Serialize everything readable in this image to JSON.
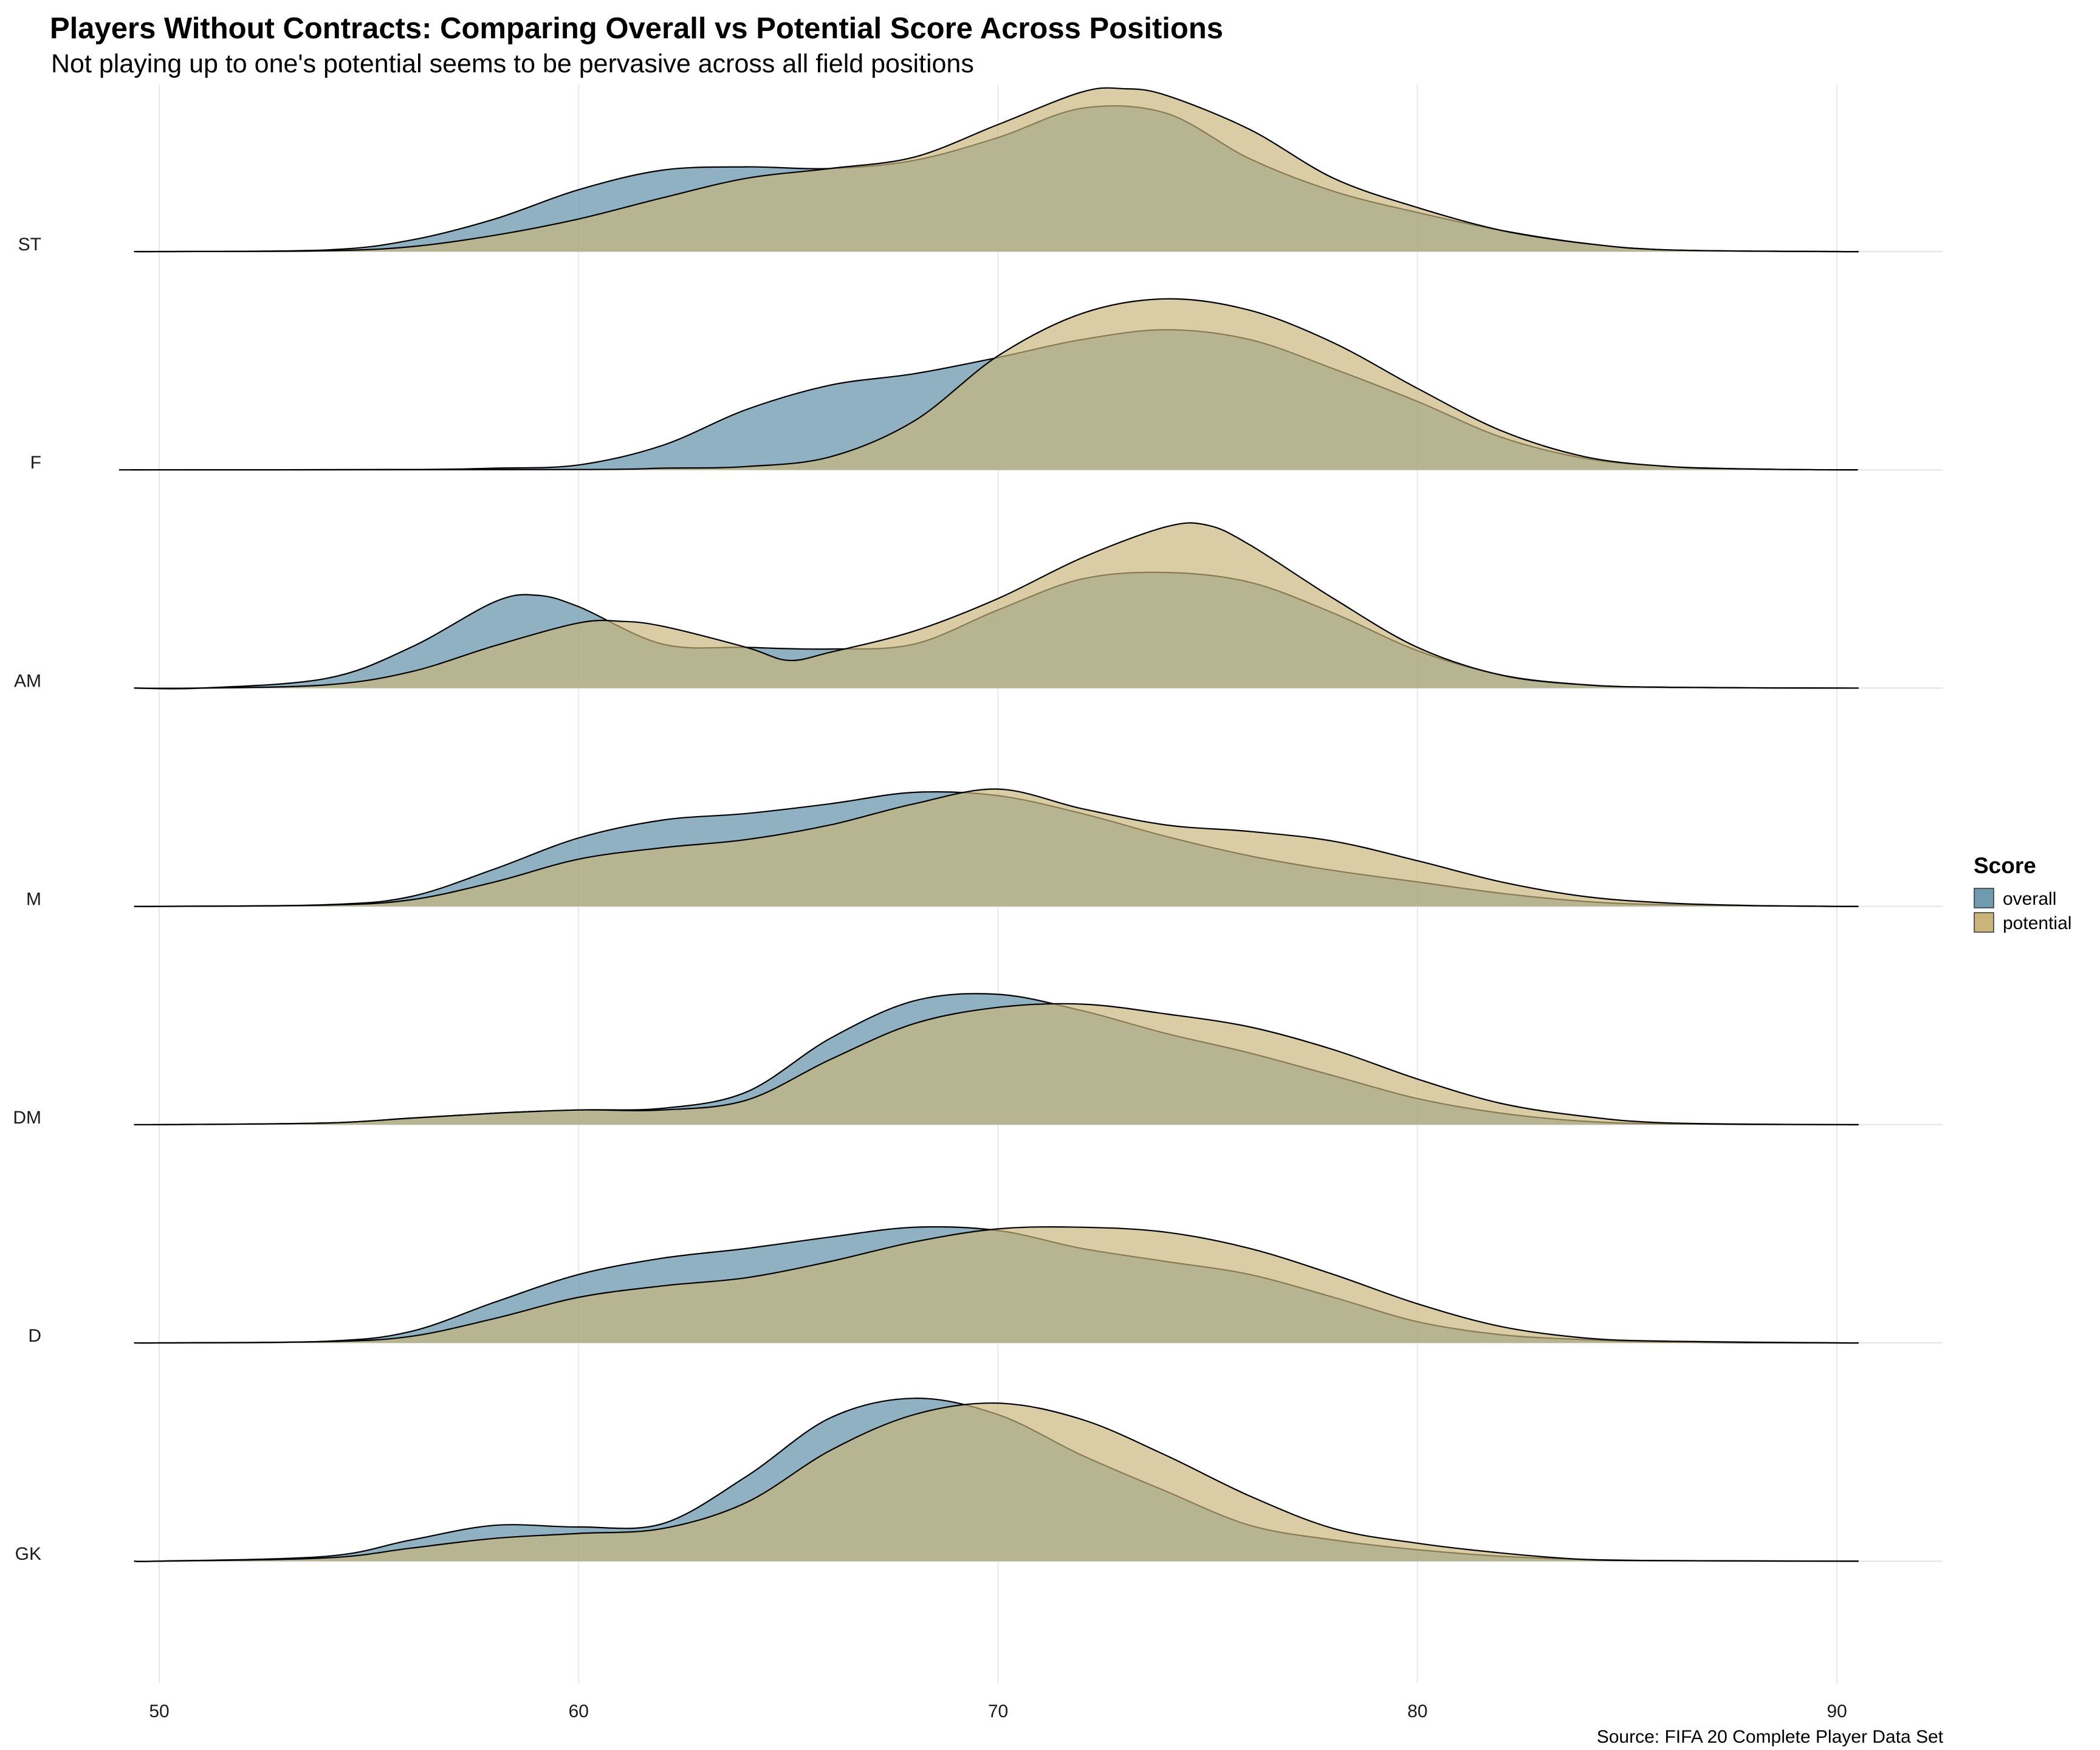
{
  "chart_data": {
    "type": "ridgeline-density",
    "title": "Players Without Contracts: Comparing Overall vs Potential Score Across Positions",
    "subtitle": "Not playing up to one's potential seems to be pervasive across all field positions",
    "caption": "Source: FIFA 20 Complete Player Data Set",
    "x_ticks": [
      50,
      60,
      70,
      80,
      90
    ],
    "xlim": [
      49.4,
      92.5
    ],
    "curve_xrange": [
      49.4,
      90.5
    ],
    "categories": [
      "ST",
      "F",
      "AM",
      "M",
      "DM",
      "D",
      "GK"
    ],
    "legend": {
      "title": "Score",
      "placement": "right",
      "items": [
        {
          "label": "overall",
          "color": "#6f9bb0"
        },
        {
          "label": "potential",
          "color": "#c9b57a"
        }
      ]
    },
    "colors": {
      "overall": "#6f9bb0",
      "potential": "#c9b57a",
      "overlap": "#a2a783"
    },
    "series_by_category": {
      "ST": {
        "overall": [
          [
            50,
            0
          ],
          [
            54,
            0.01
          ],
          [
            56,
            0.07
          ],
          [
            58,
            0.2
          ],
          [
            60,
            0.38
          ],
          [
            62,
            0.5
          ],
          [
            64,
            0.52
          ],
          [
            66,
            0.51
          ],
          [
            68,
            0.56
          ],
          [
            70,
            0.7
          ],
          [
            72,
            0.88
          ],
          [
            74,
            0.85
          ],
          [
            76,
            0.57
          ],
          [
            78,
            0.37
          ],
          [
            80,
            0.24
          ],
          [
            82,
            0.13
          ],
          [
            84,
            0.05
          ],
          [
            86,
            0.01
          ],
          [
            90,
            0
          ]
        ],
        "potential": [
          [
            50,
            0
          ],
          [
            54,
            0.005
          ],
          [
            56,
            0.03
          ],
          [
            58,
            0.1
          ],
          [
            60,
            0.2
          ],
          [
            62,
            0.33
          ],
          [
            64,
            0.45
          ],
          [
            66,
            0.51
          ],
          [
            68,
            0.58
          ],
          [
            70,
            0.78
          ],
          [
            72,
            0.98
          ],
          [
            73,
            1.0
          ],
          [
            74,
            0.96
          ],
          [
            76,
            0.75
          ],
          [
            78,
            0.45
          ],
          [
            80,
            0.27
          ],
          [
            82,
            0.13
          ],
          [
            84,
            0.05
          ],
          [
            86,
            0.01
          ],
          [
            90,
            0
          ]
        ]
      },
      "F": {
        "overall": [
          [
            50,
            0
          ],
          [
            56,
            0.002
          ],
          [
            58,
            0.01
          ],
          [
            60,
            0.03
          ],
          [
            62,
            0.15
          ],
          [
            64,
            0.37
          ],
          [
            66,
            0.52
          ],
          [
            68,
            0.59
          ],
          [
            70,
            0.69
          ],
          [
            72,
            0.8
          ],
          [
            74,
            0.86
          ],
          [
            76,
            0.8
          ],
          [
            78,
            0.62
          ],
          [
            80,
            0.42
          ],
          [
            82,
            0.2
          ],
          [
            84,
            0.07
          ],
          [
            86,
            0.02
          ],
          [
            88,
            0.005
          ],
          [
            90,
            0
          ]
        ],
        "potential": [
          [
            50,
            0
          ],
          [
            60,
            0.002
          ],
          [
            62,
            0.01
          ],
          [
            64,
            0.02
          ],
          [
            66,
            0.08
          ],
          [
            68,
            0.3
          ],
          [
            70,
            0.7
          ],
          [
            72,
            0.96
          ],
          [
            74,
            1.05
          ],
          [
            76,
            0.98
          ],
          [
            78,
            0.78
          ],
          [
            80,
            0.5
          ],
          [
            82,
            0.24
          ],
          [
            84,
            0.08
          ],
          [
            86,
            0.02
          ],
          [
            88,
            0.005
          ],
          [
            90,
            0
          ]
        ]
      },
      "AM": {
        "overall": [
          [
            51,
            0
          ],
          [
            54,
            0.06
          ],
          [
            56,
            0.25
          ],
          [
            58,
            0.53
          ],
          [
            59,
            0.57
          ],
          [
            60,
            0.5
          ],
          [
            62,
            0.27
          ],
          [
            64,
            0.25
          ],
          [
            66,
            0.24
          ],
          [
            68,
            0.27
          ],
          [
            70,
            0.48
          ],
          [
            72,
            0.67
          ],
          [
            74,
            0.71
          ],
          [
            76,
            0.65
          ],
          [
            78,
            0.46
          ],
          [
            80,
            0.23
          ],
          [
            82,
            0.08
          ],
          [
            84,
            0.02
          ],
          [
            86,
            0.005
          ],
          [
            90,
            0
          ]
        ],
        "potential": [
          [
            51,
            0
          ],
          [
            54,
            0.02
          ],
          [
            56,
            0.1
          ],
          [
            58,
            0.26
          ],
          [
            60,
            0.4
          ],
          [
            61,
            0.41
          ],
          [
            62,
            0.38
          ],
          [
            64,
            0.25
          ],
          [
            65,
            0.17
          ],
          [
            66,
            0.22
          ],
          [
            68,
            0.35
          ],
          [
            70,
            0.55
          ],
          [
            72,
            0.8
          ],
          [
            74,
            0.99
          ],
          [
            75,
            1.0
          ],
          [
            76,
            0.88
          ],
          [
            78,
            0.55
          ],
          [
            80,
            0.25
          ],
          [
            82,
            0.08
          ],
          [
            84,
            0.02
          ],
          [
            86,
            0.005
          ],
          [
            90,
            0
          ]
        ]
      },
      "M": {
        "overall": [
          [
            50,
            0
          ],
          [
            54,
            0.01
          ],
          [
            56,
            0.06
          ],
          [
            58,
            0.23
          ],
          [
            60,
            0.42
          ],
          [
            62,
            0.53
          ],
          [
            64,
            0.57
          ],
          [
            66,
            0.63
          ],
          [
            68,
            0.7
          ],
          [
            70,
            0.68
          ],
          [
            72,
            0.57
          ],
          [
            74,
            0.43
          ],
          [
            76,
            0.31
          ],
          [
            78,
            0.22
          ],
          [
            80,
            0.15
          ],
          [
            82,
            0.08
          ],
          [
            84,
            0.03
          ],
          [
            86,
            0.01
          ],
          [
            90,
            0
          ]
        ],
        "potential": [
          [
            50,
            0
          ],
          [
            54,
            0.008
          ],
          [
            56,
            0.04
          ],
          [
            58,
            0.15
          ],
          [
            60,
            0.29
          ],
          [
            62,
            0.36
          ],
          [
            64,
            0.41
          ],
          [
            66,
            0.5
          ],
          [
            68,
            0.63
          ],
          [
            70,
            0.72
          ],
          [
            72,
            0.6
          ],
          [
            74,
            0.5
          ],
          [
            76,
            0.46
          ],
          [
            78,
            0.4
          ],
          [
            80,
            0.28
          ],
          [
            82,
            0.15
          ],
          [
            84,
            0.06
          ],
          [
            86,
            0.02
          ],
          [
            88,
            0.005
          ],
          [
            90,
            0
          ]
        ]
      },
      "DM": {
        "overall": [
          [
            50,
            0
          ],
          [
            54,
            0.01
          ],
          [
            56,
            0.04
          ],
          [
            58,
            0.07
          ],
          [
            60,
            0.09
          ],
          [
            62,
            0.1
          ],
          [
            64,
            0.2
          ],
          [
            66,
            0.53
          ],
          [
            68,
            0.76
          ],
          [
            70,
            0.8
          ],
          [
            72,
            0.7
          ],
          [
            74,
            0.56
          ],
          [
            76,
            0.44
          ],
          [
            78,
            0.3
          ],
          [
            80,
            0.16
          ],
          [
            82,
            0.07
          ],
          [
            84,
            0.02
          ],
          [
            86,
            0.005
          ],
          [
            90,
            0
          ]
        ],
        "potential": [
          [
            50,
            0
          ],
          [
            54,
            0.01
          ],
          [
            56,
            0.04
          ],
          [
            58,
            0.07
          ],
          [
            60,
            0.09
          ],
          [
            62,
            0.09
          ],
          [
            64,
            0.15
          ],
          [
            66,
            0.4
          ],
          [
            68,
            0.62
          ],
          [
            70,
            0.72
          ],
          [
            72,
            0.74
          ],
          [
            74,
            0.68
          ],
          [
            76,
            0.6
          ],
          [
            78,
            0.46
          ],
          [
            80,
            0.28
          ],
          [
            82,
            0.13
          ],
          [
            84,
            0.05
          ],
          [
            86,
            0.01
          ],
          [
            90,
            0
          ]
        ]
      },
      "D": {
        "overall": [
          [
            50,
            0
          ],
          [
            54,
            0.01
          ],
          [
            56,
            0.07
          ],
          [
            58,
            0.25
          ],
          [
            60,
            0.42
          ],
          [
            62,
            0.52
          ],
          [
            64,
            0.58
          ],
          [
            66,
            0.65
          ],
          [
            68,
            0.71
          ],
          [
            70,
            0.69
          ],
          [
            72,
            0.58
          ],
          [
            74,
            0.5
          ],
          [
            76,
            0.42
          ],
          [
            78,
            0.28
          ],
          [
            80,
            0.13
          ],
          [
            82,
            0.05
          ],
          [
            84,
            0.02
          ],
          [
            86,
            0.005
          ],
          [
            90,
            0
          ]
        ],
        "potential": [
          [
            50,
            0
          ],
          [
            54,
            0.008
          ],
          [
            56,
            0.04
          ],
          [
            58,
            0.15
          ],
          [
            60,
            0.28
          ],
          [
            62,
            0.35
          ],
          [
            64,
            0.4
          ],
          [
            66,
            0.5
          ],
          [
            68,
            0.62
          ],
          [
            70,
            0.7
          ],
          [
            72,
            0.71
          ],
          [
            74,
            0.68
          ],
          [
            76,
            0.58
          ],
          [
            78,
            0.42
          ],
          [
            80,
            0.24
          ],
          [
            82,
            0.1
          ],
          [
            84,
            0.03
          ],
          [
            86,
            0.01
          ],
          [
            90,
            0
          ]
        ]
      },
      "GK": {
        "overall": [
          [
            50,
            0
          ],
          [
            54,
            0.03
          ],
          [
            56,
            0.13
          ],
          [
            58,
            0.22
          ],
          [
            60,
            0.21
          ],
          [
            62,
            0.23
          ],
          [
            64,
            0.52
          ],
          [
            66,
            0.88
          ],
          [
            68,
            1.0
          ],
          [
            70,
            0.9
          ],
          [
            72,
            0.65
          ],
          [
            74,
            0.43
          ],
          [
            76,
            0.22
          ],
          [
            78,
            0.13
          ],
          [
            80,
            0.07
          ],
          [
            82,
            0.03
          ],
          [
            84,
            0.01
          ],
          [
            86,
            0.003
          ],
          [
            90,
            0
          ]
        ],
        "potential": [
          [
            50,
            0
          ],
          [
            54,
            0.02
          ],
          [
            56,
            0.08
          ],
          [
            58,
            0.14
          ],
          [
            60,
            0.17
          ],
          [
            62,
            0.2
          ],
          [
            64,
            0.36
          ],
          [
            66,
            0.68
          ],
          [
            68,
            0.9
          ],
          [
            70,
            0.97
          ],
          [
            72,
            0.87
          ],
          [
            74,
            0.65
          ],
          [
            76,
            0.4
          ],
          [
            78,
            0.2
          ],
          [
            80,
            0.11
          ],
          [
            82,
            0.05
          ],
          [
            84,
            0.01
          ],
          [
            86,
            0.003
          ],
          [
            90,
            0
          ]
        ]
      }
    }
  }
}
